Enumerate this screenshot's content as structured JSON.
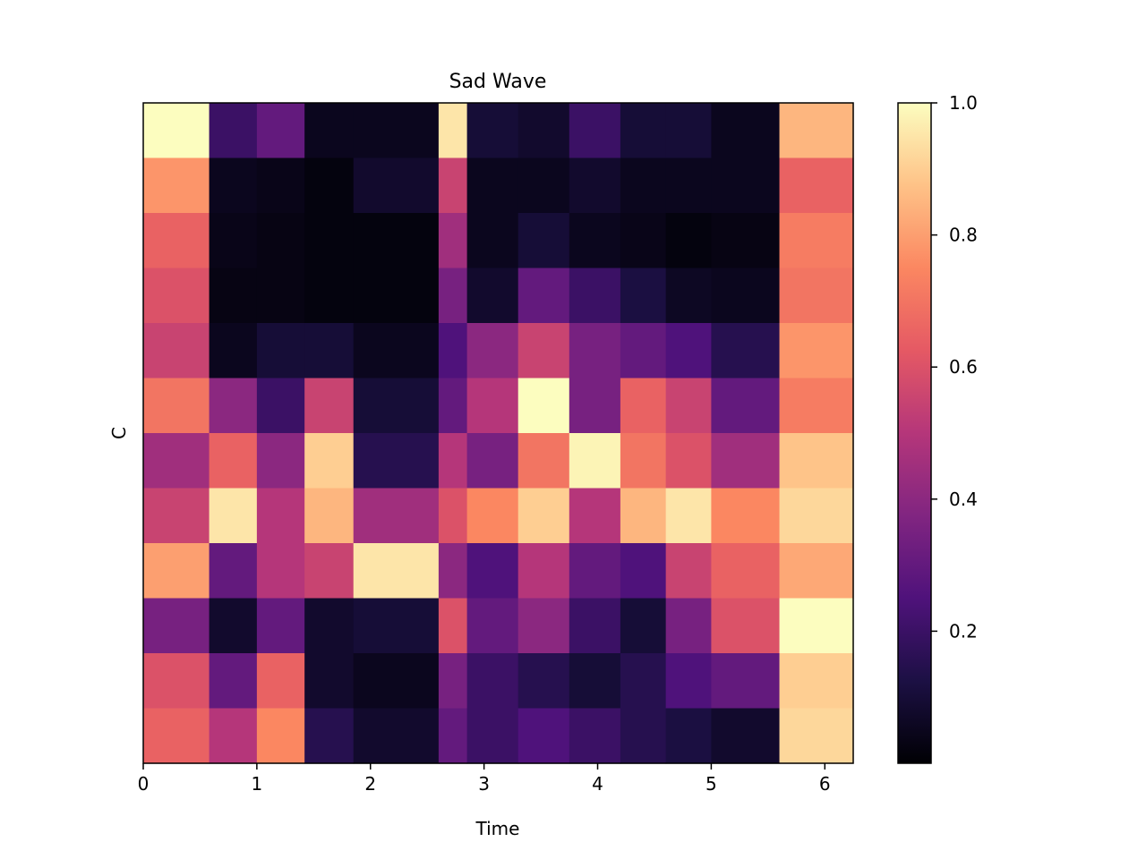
{
  "chart_data": {
    "type": "heatmap",
    "title": "Sad Wave",
    "xlabel": "Time",
    "ylabel": "C",
    "xlim": [
      0,
      6.25
    ],
    "x_ticks": [
      0,
      1,
      2,
      3,
      4,
      5,
      6
    ],
    "x_tick_labels": [
      "0",
      "1",
      "2",
      "3",
      "4",
      "5",
      "6"
    ],
    "row_count": 12,
    "colormap": "magma",
    "colorbar": {
      "range": [
        0.0,
        1.0
      ],
      "ticks": [
        0.2,
        0.4,
        0.6,
        0.8,
        1.0
      ],
      "tick_labels": [
        "0.2",
        "0.4",
        "0.6",
        "0.8",
        "1.0"
      ]
    },
    "segment_edges": [
      0,
      0.58,
      1.0,
      1.42,
      1.85,
      2.6,
      2.85,
      3.3,
      3.75,
      4.2,
      4.6,
      5.0,
      5.6,
      6.25
    ],
    "rows_top_to_bottom": [
      [
        1.0,
        0.2,
        0.3,
        0.05,
        0.05,
        0.95,
        0.1,
        0.08,
        0.2,
        0.1,
        0.1,
        0.05,
        0.85
      ],
      [
        0.78,
        0.05,
        0.04,
        0.02,
        0.08,
        0.55,
        0.05,
        0.05,
        0.08,
        0.05,
        0.05,
        0.05,
        0.65
      ],
      [
        0.65,
        0.04,
        0.03,
        0.02,
        0.02,
        0.45,
        0.05,
        0.1,
        0.05,
        0.04,
        0.02,
        0.03,
        0.72
      ],
      [
        0.6,
        0.03,
        0.03,
        0.02,
        0.02,
        0.35,
        0.08,
        0.3,
        0.2,
        0.12,
        0.06,
        0.05,
        0.7
      ],
      [
        0.55,
        0.05,
        0.1,
        0.1,
        0.05,
        0.25,
        0.4,
        0.55,
        0.35,
        0.3,
        0.25,
        0.15,
        0.78
      ],
      [
        0.7,
        0.4,
        0.2,
        0.55,
        0.1,
        0.3,
        0.5,
        1.0,
        0.35,
        0.65,
        0.55,
        0.3,
        0.72
      ],
      [
        0.45,
        0.65,
        0.4,
        0.9,
        0.15,
        0.5,
        0.35,
        0.7,
        0.98,
        0.7,
        0.6,
        0.45,
        0.88
      ],
      [
        0.55,
        0.95,
        0.5,
        0.85,
        0.45,
        0.6,
        0.75,
        0.9,
        0.5,
        0.85,
        0.95,
        0.75,
        0.92
      ],
      [
        0.8,
        0.3,
        0.5,
        0.55,
        0.95,
        0.4,
        0.25,
        0.5,
        0.3,
        0.25,
        0.55,
        0.65,
        0.82
      ],
      [
        0.35,
        0.08,
        0.3,
        0.08,
        0.1,
        0.6,
        0.3,
        0.4,
        0.2,
        0.1,
        0.35,
        0.6,
        1.0
      ],
      [
        0.6,
        0.3,
        0.65,
        0.08,
        0.05,
        0.35,
        0.2,
        0.15,
        0.1,
        0.15,
        0.25,
        0.3,
        0.9
      ],
      [
        0.65,
        0.5,
        0.75,
        0.15,
        0.08,
        0.3,
        0.2,
        0.25,
        0.2,
        0.15,
        0.12,
        0.08,
        0.92
      ]
    ]
  }
}
